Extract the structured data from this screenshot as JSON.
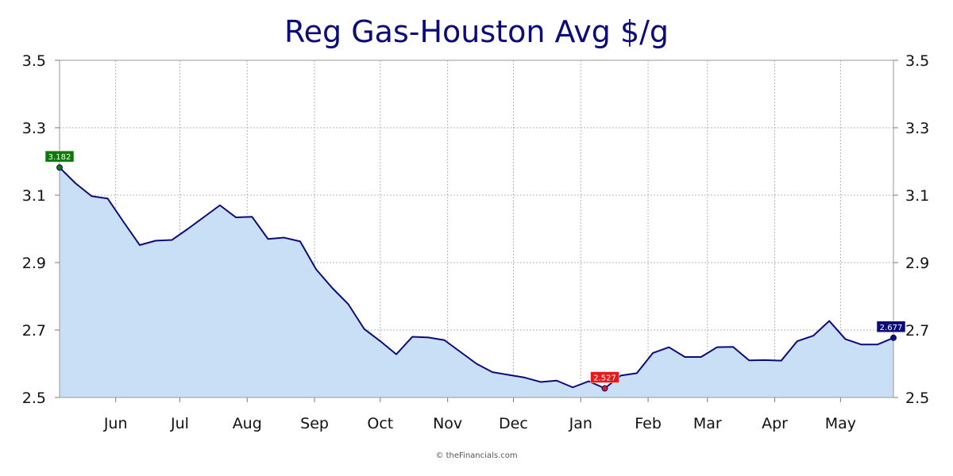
{
  "chart_data": {
    "type": "area",
    "title": "Reg Gas-Houston Avg $/g",
    "xlabel": "",
    "ylabel": "",
    "ylim": [
      2.5,
      3.5
    ],
    "y_ticks": [
      "2.5",
      "2.7",
      "2.9",
      "3.1",
      "3.3",
      "3.5"
    ],
    "x_tick_labels": [
      {
        "label": "Jun",
        "week": 3.5
      },
      {
        "label": "Jul",
        "week": 7.5
      },
      {
        "label": "Aug",
        "week": 11.7
      },
      {
        "label": "Sep",
        "week": 15.9
      },
      {
        "label": "Oct",
        "week": 20.0
      },
      {
        "label": "Nov",
        "week": 24.2
      },
      {
        "label": "Dec",
        "week": 28.3
      },
      {
        "label": "Jan",
        "week": 32.5
      },
      {
        "label": "Feb",
        "week": 36.7
      },
      {
        "label": "Mar",
        "week": 40.4
      },
      {
        "label": "Apr",
        "week": 44.6
      },
      {
        "label": "May",
        "week": 48.7
      }
    ],
    "grid": true,
    "series": [
      {
        "values": [
          3.182,
          3.135,
          3.097,
          3.09,
          3.02,
          2.952,
          2.965,
          2.967,
          3.0,
          3.035,
          3.07,
          3.034,
          3.036,
          2.97,
          2.974,
          2.963,
          2.88,
          2.825,
          2.777,
          2.703,
          2.667,
          2.628,
          2.68,
          2.678,
          2.67,
          2.635,
          2.6,
          2.575,
          2.567,
          2.559,
          2.546,
          2.55,
          2.53,
          2.548,
          2.527,
          2.565,
          2.572,
          2.632,
          2.649,
          2.62,
          2.62,
          2.649,
          2.65,
          2.61,
          2.611,
          2.609,
          2.667,
          2.683,
          2.727,
          2.673,
          2.657,
          2.657,
          2.677
        ]
      }
    ],
    "markers": [
      {
        "label": "3.182",
        "index": 0,
        "value": 3.182,
        "color": "#0a7a0a"
      },
      {
        "label": "2.527",
        "index": 34,
        "value": 2.527,
        "color": "#e21b1b"
      },
      {
        "label": "2.677",
        "index": 52,
        "value": 2.677,
        "color": "#0b0b7a"
      }
    ],
    "colors": {
      "line": "#0b0b7a",
      "fill": "#c9dff6",
      "grid": "#b3b3b3",
      "title": "#0b0b7a"
    }
  },
  "footer": {
    "copyright": "© theFinancials.com"
  }
}
